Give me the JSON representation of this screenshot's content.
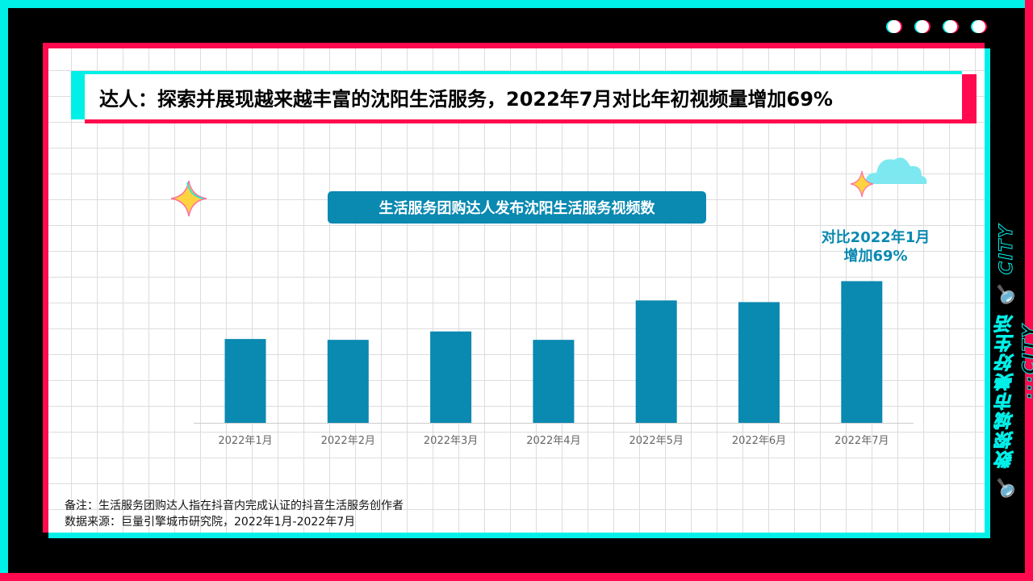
{
  "title": "达人：探索并展现越来越丰富的沈阳生活服务，2022年7月对比年初视频量增加69%",
  "side_text": "🔍 数探城市美好生活 🔍 CITY ···CITY",
  "chart_data": {
    "type": "bar",
    "title": "生活服务团购达人发布沈阳生活服务视频数",
    "categories": [
      "2022年1月",
      "2022年2月",
      "2022年3月",
      "2022年4月",
      "2022年5月",
      "2022年6月",
      "2022年7月"
    ],
    "values": [
      100,
      99,
      109,
      99,
      146,
      144,
      169
    ],
    "ylim": [
      0,
      180
    ],
    "y_axis_shown": false,
    "grid": false,
    "bar_color": "#0a89b1",
    "annotation": {
      "category": "2022年7月",
      "line1": "对比2022年1月",
      "line2": "增加69%"
    }
  },
  "notes": {
    "remark": "备注：生活服务团购达人指在抖音内完成认证的抖音生活服务创作者",
    "source": "数据来源：巨量引擎城市研究院，2022年1月-2022年7月"
  },
  "colors": {
    "cyan": "#00f0e8",
    "red": "#ff0a4e",
    "accent": "#0a89b1"
  }
}
